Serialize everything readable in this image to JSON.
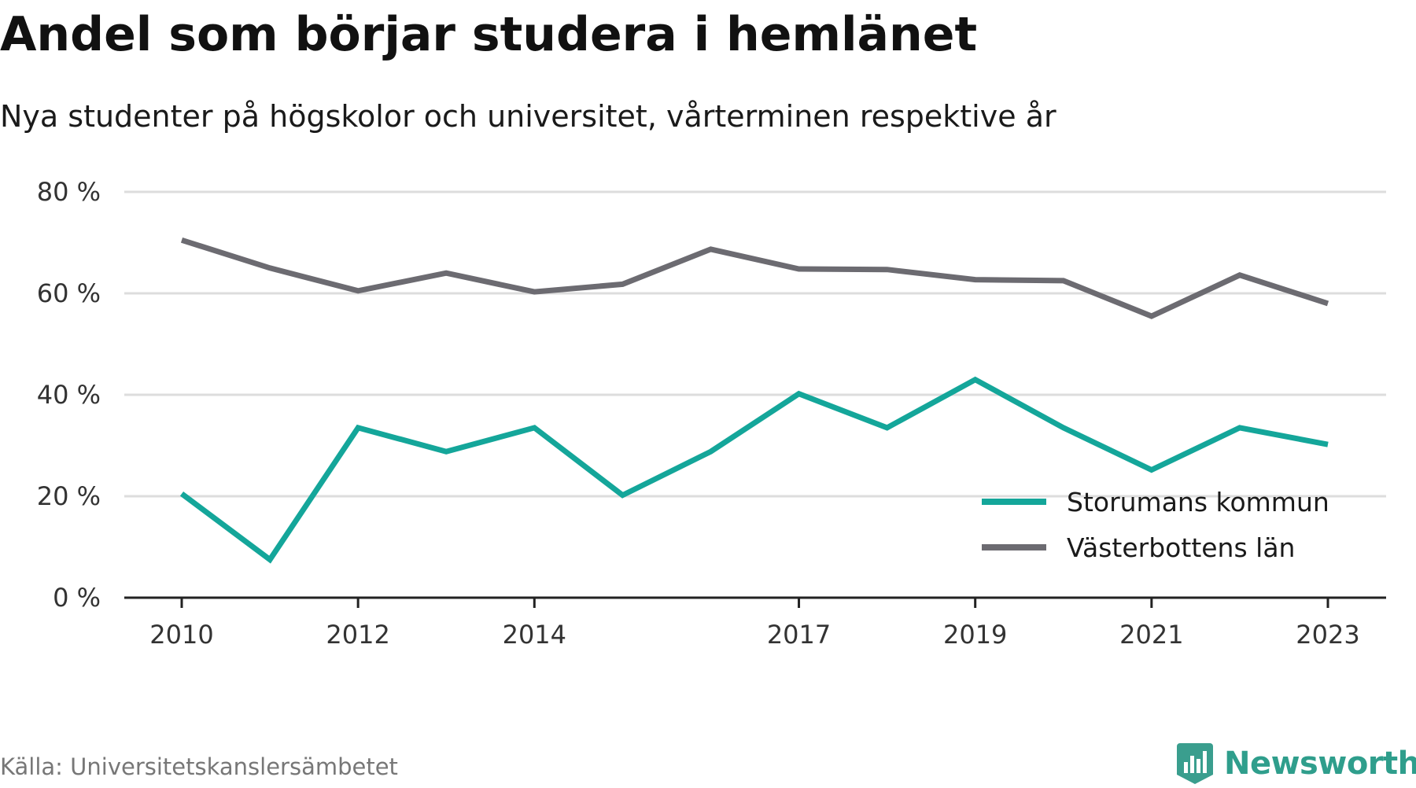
{
  "title": "Andel som börjar studera i hemlänet",
  "subtitle": "Nya studenter på högskolor och universitet, vårterminen respektive år",
  "source": "Källa: Universitetskanslersämbetet",
  "brand": {
    "name": "Newsworthy",
    "logo_icon": "newsworthy-chart-icon",
    "color": "#3a9e8e"
  },
  "chart_data": {
    "type": "line",
    "title": "Andel som börjar studera i hemlänet",
    "subtitle": "Nya studenter på högskolor och universitet, vårterminen respektive år",
    "x": [
      2010,
      2011,
      2012,
      2013,
      2014,
      2015,
      2016,
      2017,
      2018,
      2019,
      2020,
      2021,
      2022,
      2023
    ],
    "x_tick_labels": [
      "2010",
      "2012",
      "2014",
      "2017",
      "2019",
      "2021",
      "2023"
    ],
    "y_tick_labels": [
      "0 %",
      "20 %",
      "40 %",
      "60 %",
      "80 %"
    ],
    "y_ticks": [
      0,
      20,
      40,
      60,
      80
    ],
    "ylim": [
      0,
      80
    ],
    "xlabel": "",
    "ylabel": "",
    "grid": true,
    "legend_position": "lower-right",
    "series": [
      {
        "name": "Storumans kommun",
        "color": "#14a69a",
        "values": [
          20.5,
          7.5,
          33.5,
          28.8,
          33.5,
          20.2,
          28.8,
          40.2,
          33.5,
          43.0,
          33.5,
          25.2,
          33.5,
          30.2
        ]
      },
      {
        "name": "Västerbottens län",
        "color": "#6c6b71",
        "values": [
          70.5,
          65.0,
          60.5,
          64.0,
          60.3,
          61.8,
          68.7,
          64.8,
          64.7,
          62.7,
          62.5,
          55.5,
          63.6,
          58.0
        ]
      }
    ]
  }
}
